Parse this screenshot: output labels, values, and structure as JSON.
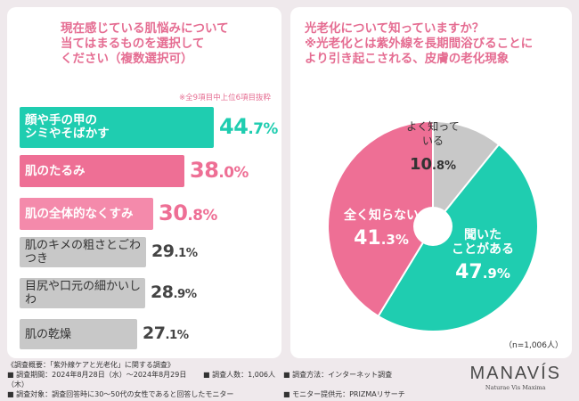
{
  "left": {
    "title": "現在感じている肌悩みについて\n当てはまるものを選択して\nください（複数選択可）",
    "note": "※全9項目中上位6項目抜粋",
    "bars": [
      {
        "label": "顔や手の甲の\nシミやそばかす",
        "value_int": "44",
        "value_dec": ".7",
        "unit": "%",
        "color": "#1fcdb0",
        "style": "green"
      },
      {
        "label": "肌のたるみ",
        "value_int": "38",
        "value_dec": ".0",
        "unit": "%",
        "color": "#ee6f95",
        "style": "pink"
      },
      {
        "label": "肌の全体的なくすみ",
        "value_int": "30",
        "value_dec": ".8",
        "unit": "%",
        "color": "#f48aab",
        "style": "pink"
      },
      {
        "label": "肌のキメの粗さとごわつき",
        "value_int": "29",
        "value_dec": ".1",
        "unit": "%",
        "color": "#c8c8c8",
        "style": "gray"
      },
      {
        "label": "目尻や口元の細かいしわ",
        "value_int": "28",
        "value_dec": ".9",
        "unit": "%",
        "color": "#c8c8c8",
        "style": "gray"
      },
      {
        "label": "肌の乾燥",
        "value_int": "27",
        "value_dec": ".1",
        "unit": "%",
        "color": "#c8c8c8",
        "style": "gray"
      }
    ]
  },
  "right": {
    "title": "光老化について知っていますか？\n※光老化とは紫外線を長期間浴びることに\nより引き起こされる、皮膚の老化現象",
    "sample": "（n=1,006人）"
  },
  "chart_data": [
    {
      "type": "bar",
      "title": "現在感じている肌悩みについて当てはまるものを選択してください（複数選択可）",
      "categories": [
        "顔や手の甲のシミやそばかす",
        "肌のたるみ",
        "肌の全体的なくすみ",
        "肌のキメの粗さとごわつき",
        "目尻や口元の細かいしわ",
        "肌の乾燥"
      ],
      "values": [
        44.7,
        38.0,
        30.8,
        29.1,
        28.9,
        27.1
      ],
      "unit": "%"
    },
    {
      "type": "pie",
      "title": "光老化について知っていますか？",
      "slices": [
        {
          "label": "よく知っている",
          "value": 10.8,
          "color": "#c8c8c8",
          "text": "よく知って\nいる",
          "pct_int": "10",
          "pct_dec": ".8%"
        },
        {
          "label": "聞いたことがある",
          "value": 47.9,
          "color": "#1fcdb0",
          "text": "聞いた\nことがある",
          "pct_int": "47",
          "pct_dec": ".9%"
        },
        {
          "label": "全く知らない",
          "value": 41.3,
          "color": "#ee6f95",
          "text": "全く知らない",
          "pct_int": "41",
          "pct_dec": ".3%"
        }
      ]
    }
  ],
  "footer": {
    "line1": "《調査概要：「紫外線ケアと光老化」に関する調査》",
    "period": "■ 調査期間：2024年8月28日（水）〜2024年8月29日（木）",
    "count": "■ 調査人数：1,006人",
    "method": "■ 調査方法：インターネット調査",
    "target": "■ 調査対象：調査回答時に30〜50代の女性であると回答したモニター",
    "provider": "■ モニター提供元：PRIZMAリサーチ"
  },
  "logo": {
    "name": "MANAVÍS",
    "tagline": "Naturae Vis Maxima"
  }
}
